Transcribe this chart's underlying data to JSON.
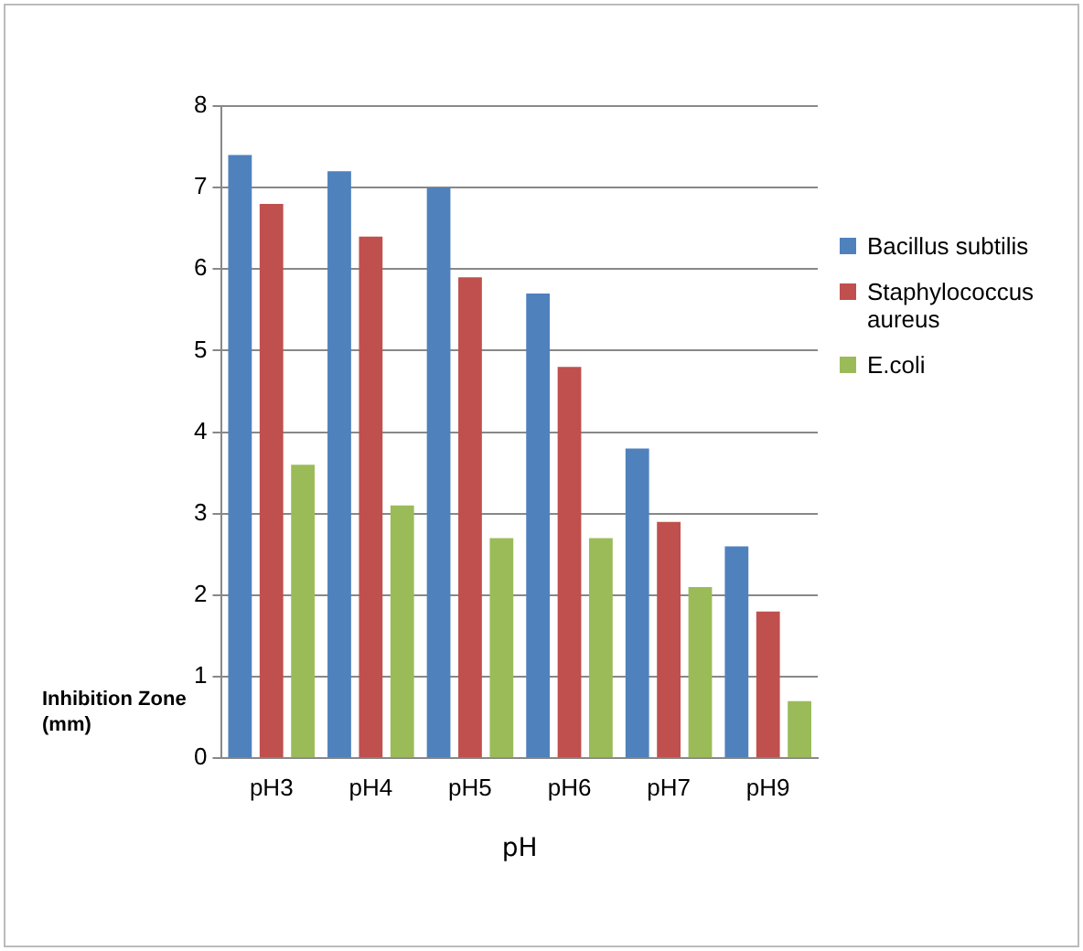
{
  "chart_data": {
    "type": "bar",
    "xlabel": "pH",
    "ylabel": "Inhibition Zone (mm)",
    "categories": [
      "pH3",
      "pH4",
      "pH5",
      "pH6",
      "pH7",
      "pH9"
    ],
    "series": [
      {
        "name": "Bacillus subtilis",
        "color": "#4f81bd",
        "values": [
          7.4,
          7.2,
          7.0,
          5.7,
          3.8,
          2.6
        ]
      },
      {
        "name": "Staphylococcus aureus",
        "color": "#c0504d",
        "values": [
          6.8,
          6.4,
          5.9,
          4.8,
          2.9,
          1.8
        ]
      },
      {
        "name": "E.coli",
        "color": "#9bbb59",
        "values": [
          3.6,
          3.1,
          2.7,
          2.7,
          2.1,
          0.7
        ]
      }
    ],
    "ylim": [
      0,
      8
    ],
    "yticks": [
      0,
      1,
      2,
      3,
      4,
      5,
      6,
      7,
      8
    ],
    "grid": "y",
    "legend": "right"
  }
}
